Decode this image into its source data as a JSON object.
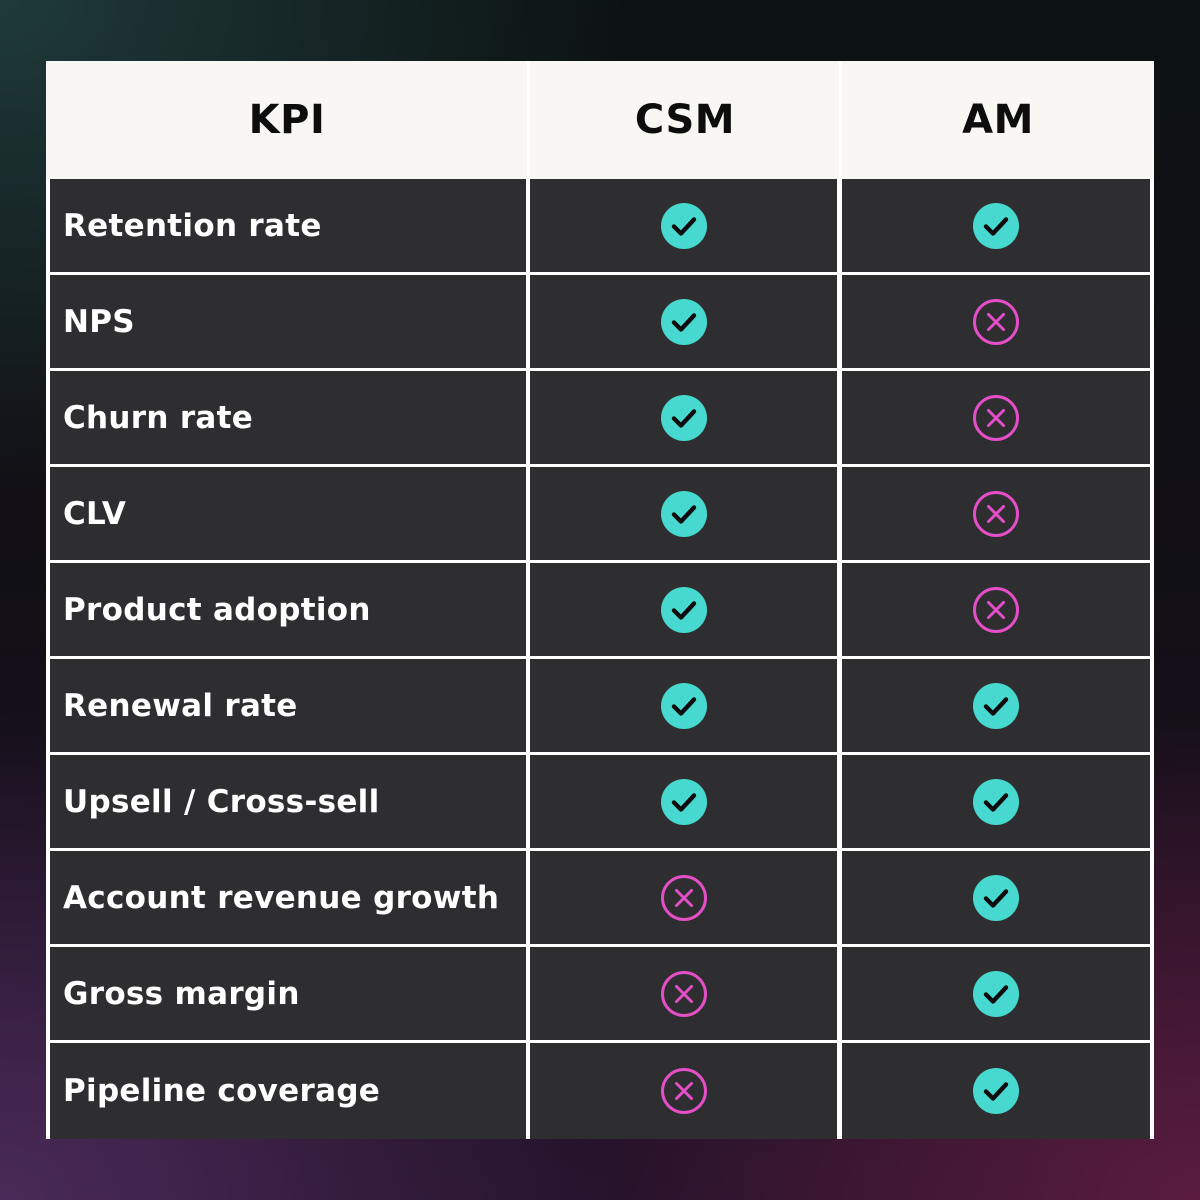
{
  "table": {
    "headers": {
      "kpi": "KPI",
      "csm": "CSM",
      "am": "AM"
    },
    "rows": [
      {
        "kpi": "Retention rate",
        "csm": "check-icon",
        "am": "check-icon"
      },
      {
        "kpi": "NPS",
        "csm": "check-icon",
        "am": "cross-icon"
      },
      {
        "kpi": "Churn rate",
        "csm": "check-icon",
        "am": "cross-icon"
      },
      {
        "kpi": "CLV",
        "csm": "check-icon",
        "am": "cross-icon"
      },
      {
        "kpi": "Product adoption",
        "csm": "check-icon",
        "am": "cross-icon"
      },
      {
        "kpi": "Renewal rate",
        "csm": "check-icon",
        "am": "check-icon"
      },
      {
        "kpi": "Upsell / Cross-sell",
        "csm": "check-icon",
        "am": "check-icon"
      },
      {
        "kpi": "Account revenue growth",
        "csm": "cross-icon",
        "am": "check-icon"
      },
      {
        "kpi": "Gross margin",
        "csm": "cross-icon",
        "am": "check-icon"
      },
      {
        "kpi": "Pipeline coverage",
        "csm": "cross-icon",
        "am": "check-icon"
      }
    ]
  },
  "colors": {
    "check": "#47d9d0",
    "cross": "#e44fc8",
    "header_bg": "#f8f7f3",
    "grid_line": "#ffffff"
  }
}
